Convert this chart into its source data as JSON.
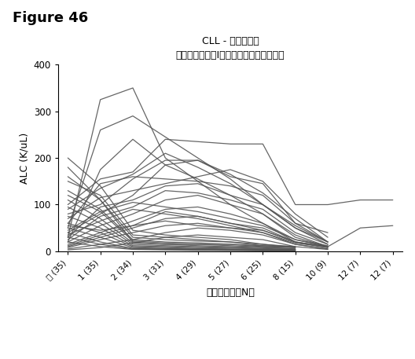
{
  "title_line1": "CLL - リンパ球数",
  "title_line2": "（単独薬剤の式Iの化合物－別途の研究）",
  "xlabel": "サイクル　（N）",
  "ylabel": "ALC (K/uL)",
  "figure_label": "Figure 46",
  "xtick_labels": [
    "前 (35)",
    "1 (35)",
    "2 (34)",
    "3 (31)",
    "4 (29)",
    "5 (27)",
    "6 (25)",
    "8 (15)",
    "10 (9)",
    "12 (7)",
    "12 (7)"
  ],
  "x_positions": [
    0,
    1,
    2,
    3,
    4,
    5,
    6,
    7,
    8,
    9,
    10
  ],
  "ylim": [
    0,
    400
  ],
  "yticks": [
    0,
    100,
    200,
    300,
    400
  ],
  "line_color": "#555555",
  "background_color": "#ffffff",
  "patient_lines": [
    [
      30,
      325,
      350,
      200,
      150,
      100,
      60,
      20,
      null,
      null,
      null
    ],
    [
      50,
      260,
      290,
      245,
      200,
      155,
      100,
      50,
      20,
      null,
      null
    ],
    [
      20,
      175,
      240,
      185,
      155,
      120,
      80,
      30,
      10,
      null,
      null
    ],
    [
      100,
      155,
      170,
      240,
      235,
      230,
      230,
      100,
      100,
      110,
      110
    ],
    [
      90,
      135,
      165,
      210,
      180,
      145,
      100,
      55,
      20,
      null,
      null
    ],
    [
      80,
      100,
      155,
      195,
      195,
      160,
      145,
      60,
      40,
      null,
      null
    ],
    [
      70,
      115,
      130,
      145,
      160,
      175,
      150,
      80,
      30,
      null,
      null
    ],
    [
      60,
      145,
      160,
      155,
      150,
      140,
      120,
      60,
      20,
      null,
      null
    ],
    [
      40,
      80,
      120,
      185,
      195,
      165,
      125,
      70,
      20,
      null,
      null
    ],
    [
      30,
      95,
      110,
      140,
      145,
      120,
      100,
      50,
      15,
      null,
      null
    ],
    [
      25,
      75,
      95,
      130,
      125,
      110,
      90,
      40,
      15,
      null,
      null
    ],
    [
      20,
      55,
      80,
      110,
      120,
      100,
      80,
      35,
      10,
      null,
      null
    ],
    [
      15,
      40,
      65,
      90,
      95,
      80,
      60,
      25,
      10,
      null,
      null
    ],
    [
      10,
      30,
      50,
      70,
      75,
      60,
      50,
      20,
      8,
      null,
      null
    ],
    [
      8,
      25,
      40,
      55,
      60,
      50,
      40,
      15,
      5,
      null,
      null
    ],
    [
      180,
      110,
      20,
      15,
      15,
      15,
      12,
      10,
      null,
      null,
      null
    ],
    [
      130,
      90,
      25,
      20,
      18,
      15,
      10,
      8,
      null,
      null,
      null
    ],
    [
      110,
      70,
      18,
      15,
      12,
      10,
      8,
      5,
      null,
      null,
      null
    ],
    [
      95,
      60,
      15,
      12,
      10,
      8,
      6,
      4,
      null,
      null,
      null
    ],
    [
      75,
      50,
      12,
      10,
      8,
      7,
      5,
      3,
      null,
      null,
      null
    ],
    [
      60,
      40,
      10,
      8,
      6,
      5,
      4,
      3,
      null,
      null,
      null
    ],
    [
      50,
      30,
      8,
      6,
      5,
      4,
      3,
      2,
      null,
      null,
      null
    ],
    [
      40,
      20,
      6,
      5,
      4,
      3,
      2,
      2,
      null,
      null,
      null
    ],
    [
      30,
      15,
      5,
      4,
      3,
      2,
      2,
      1,
      null,
      null,
      null
    ],
    [
      20,
      10,
      4,
      3,
      2,
      2,
      1,
      1,
      null,
      null,
      null
    ],
    [
      150,
      120,
      35,
      30,
      25,
      20,
      15,
      8,
      null,
      null,
      null
    ],
    [
      12,
      35,
      55,
      85,
      75,
      60,
      45,
      20,
      10,
      null,
      null
    ],
    [
      35,
      65,
      90,
      80,
      70,
      55,
      40,
      18,
      8,
      null,
      null
    ],
    [
      45,
      85,
      105,
      95,
      85,
      70,
      55,
      25,
      12,
      null,
      null
    ],
    [
      5,
      15,
      25,
      40,
      50,
      45,
      35,
      15,
      5,
      null,
      null
    ],
    [
      3,
      8,
      18,
      30,
      35,
      30,
      25,
      10,
      4,
      null,
      null
    ],
    [
      200,
      140,
      45,
      35,
      30,
      25,
      15,
      10,
      null,
      null,
      null
    ],
    [
      160,
      110,
      30,
      25,
      22,
      20,
      12,
      8,
      null,
      null,
      null
    ],
    [
      120,
      85,
      22,
      18,
      15,
      12,
      9,
      5,
      null,
      null,
      null
    ],
    [
      55,
      45,
      55,
      65,
      55,
      50,
      45,
      20,
      10,
      50,
      55
    ]
  ]
}
